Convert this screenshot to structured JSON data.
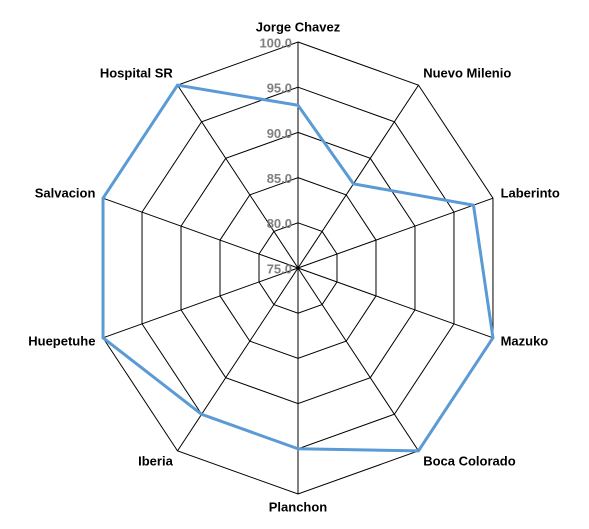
{
  "chart_data": {
    "type": "radar",
    "categories": [
      "Jorge Chavez",
      "Nuevo Milenio",
      "Laberinto",
      "Mazuko",
      "Boca Colorado",
      "Planchon",
      "Iberia",
      "Huepetuhe",
      "Salvacion",
      "Hospital SR"
    ],
    "values": [
      93,
      86.5,
      97.5,
      100,
      100,
      95,
      95,
      100,
      100,
      100
    ],
    "color": "#5b9bd5",
    "ylim": [
      75,
      100
    ],
    "yticks": [
      {
        "value": 75,
        "label": "75.0"
      },
      {
        "value": 80,
        "label": "80.0"
      },
      {
        "value": 85,
        "label": "85.0"
      },
      {
        "value": 90,
        "label": "90.0"
      },
      {
        "value": 95,
        "label": "95.0"
      },
      {
        "value": 100,
        "label": "100.0"
      }
    ],
    "grid": true
  }
}
